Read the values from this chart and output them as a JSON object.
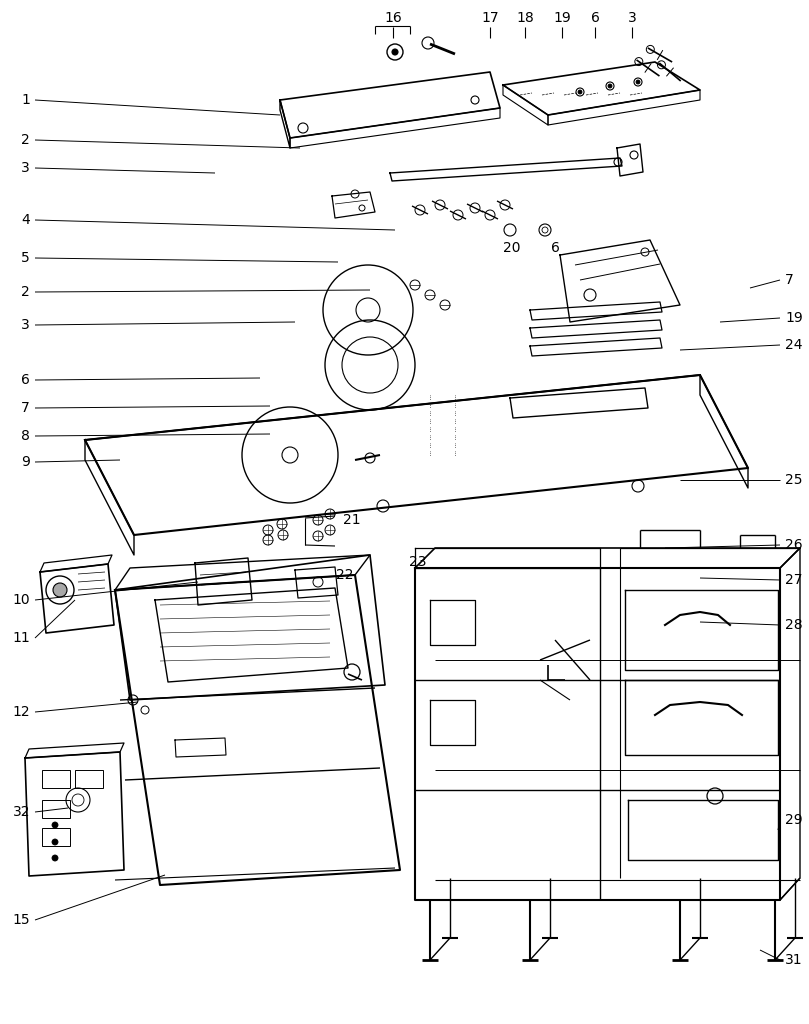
{
  "bg_color": "#ffffff",
  "line_color": "#000000",
  "fig_width": 8.09,
  "fig_height": 10.24,
  "dpi": 100
}
